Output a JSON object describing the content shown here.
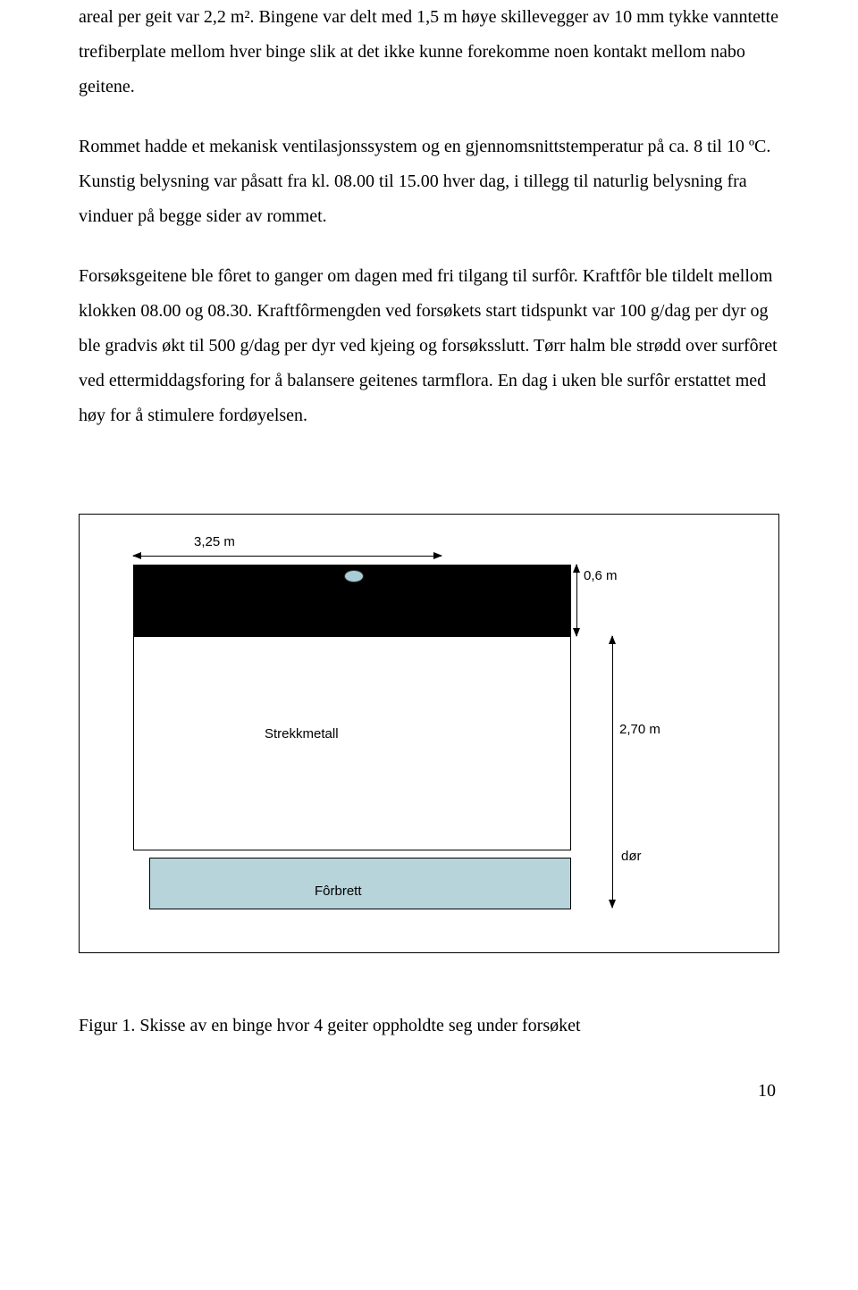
{
  "paragraph1": "areal per geit var 2,2 m². Bingene var delt med 1,5 m høye skillevegger av 10 mm tykke vanntette trefiberplate mellom hver binge slik at det ikke kunne forekomme noen kontakt mellom nabo geitene.",
  "paragraph2": "Rommet hadde et mekanisk ventilasjonssystem og en gjennomsnittstemperatur på ca. 8 til 10 ºC. Kunstig belysning var påsatt fra kl. 08.00 til 15.00 hver dag, i tillegg til naturlig belysning fra vinduer på begge sider av rommet.",
  "paragraph3": "Forsøksgeitene ble fôret to ganger om dagen med fri tilgang til surfôr. Kraftfôr ble tildelt mellom klokken 08.00 og 08.30. Kraftfôrmengden ved forsøkets start tidspunkt var 100 g/dag per dyr og ble gradvis økt til 500 g/dag per dyr ved kjeing og forsøksslutt. Tørr halm ble strødd over surfôret ved ettermiddagsforing for å balansere geitenes tarmflora. En dag i uken ble surfôr erstattet med høy for å stimulere fordøyelsen.",
  "diagram": {
    "dim_top": "3,25 m",
    "dim_06": "0,6 m",
    "strekkmetall": "Strekkmetall",
    "dim_270": "2,70 m",
    "dor": "dør",
    "forbrett": "Fôrbrett",
    "colors": {
      "black_bar": "#000000",
      "blue_dot": "#a9cdd7",
      "forbrett_fill": "#b7d4db",
      "border": "#000000",
      "background": "#ffffff"
    }
  },
  "figcaption": "Figur 1. Skisse av en binge hvor 4 geiter oppholdte seg under forsøket",
  "pagenum": "10"
}
